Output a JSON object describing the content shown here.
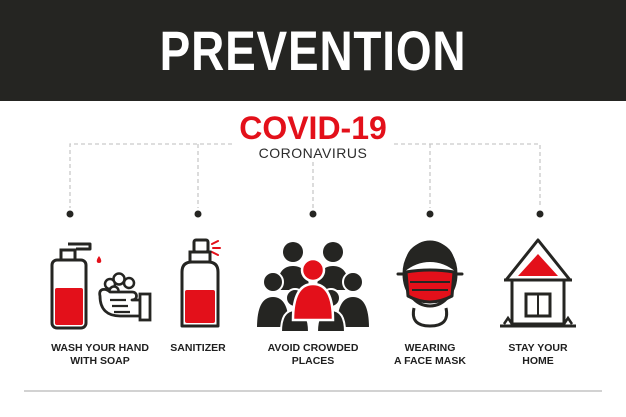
{
  "header": {
    "title": "PREVENTION"
  },
  "hero": {
    "title": "COVID-19",
    "subtitle": "CORONAVIRUS"
  },
  "colors": {
    "accent": "#e3101a",
    "dark": "#252522",
    "line": "#c9c9c9"
  },
  "items": [
    {
      "label": "WASH YOUR HAND\nWITH SOAP",
      "icon": "handwash-soap-icon"
    },
    {
      "label": "SANITIZER",
      "icon": "sanitizer-spray-icon"
    },
    {
      "label": "AVOID CROWDED\nPLACES",
      "icon": "crowd-icon"
    },
    {
      "label": "WEARING\nA FACE MASK",
      "icon": "face-mask-icon"
    },
    {
      "label": "STAY YOUR\nHOME",
      "icon": "home-icon"
    }
  ]
}
